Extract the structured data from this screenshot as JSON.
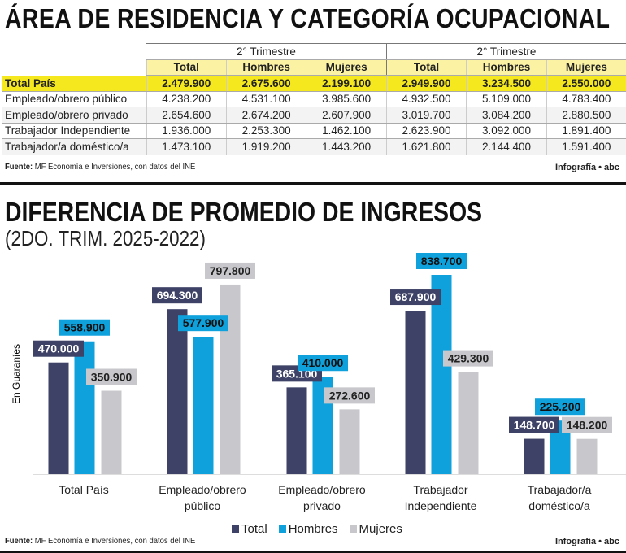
{
  "table_section": {
    "title": "ÁREA DE RESIDENCIA Y CATEGORÍA OCUPACIONAL",
    "group_headers": [
      "2° Trimestre",
      "2° Trimestre"
    ],
    "columns": [
      "Total",
      "Hombres",
      "Mujeres",
      "Total",
      "Hombres",
      "Mujeres"
    ],
    "rows": [
      {
        "label": "Total País",
        "values": [
          "2.479.900",
          "2.675.600",
          "2.199.100",
          "2.949.900",
          "3.234.500",
          "2.550.000"
        ]
      },
      {
        "label": "Empleado/obrero público",
        "values": [
          "4.238.200",
          "4.531.100",
          "3.985.600",
          "4.932.500",
          "5.109.000",
          "4.783.400"
        ]
      },
      {
        "label": "Empleado/obrero privado",
        "values": [
          "2.654.600",
          "2.674.200",
          "2.607.900",
          "3.019.700",
          "3.084.200",
          "2.880.500"
        ]
      },
      {
        "label": "Trabajador Independiente",
        "values": [
          "1.936.000",
          "2.253.300",
          "1.462.100",
          "2.623.900",
          "3.092.000",
          "1.891.400"
        ]
      },
      {
        "label": "Trabajador/a doméstico/a",
        "values": [
          "1.473.100",
          "1.919.200",
          "1.443.200",
          "1.621.800",
          "2.144.400",
          "1.591.400"
        ]
      }
    ],
    "source_label": "Fuente:",
    "source_text": "MF Economía e Inversiones, con datos del INE",
    "credit": "Infografía • abc"
  },
  "chart_section": {
    "source_label": "Fuente:",
    "source_text": "MF Economía e Inversiones, con datos del INE",
    "credit": "Infografía • abc"
  },
  "chart_data": {
    "type": "bar",
    "title": "DIFERENCIA DE PROMEDIO DE INGRESOS",
    "subtitle": "(2DO. TRIM. 2025-2022)",
    "ylabel": "En Guaraníes",
    "xlabel": "",
    "ylim": [
      0,
      840000
    ],
    "grid": false,
    "legend": "bottom",
    "categories": [
      [
        "Total País"
      ],
      [
        "Empleado/obrero",
        "público"
      ],
      [
        "Empleado/obrero",
        "privado"
      ],
      [
        "Trabajador",
        "Independiente"
      ],
      [
        "Trabajador/a",
        "doméstico/a"
      ]
    ],
    "series": [
      {
        "name": "Total",
        "color": "#3d4266",
        "values": [
          470000,
          694300,
          365100,
          687900,
          148700
        ],
        "labels": [
          "470.000",
          "694.300",
          "365.100",
          "687.900",
          "148.700"
        ]
      },
      {
        "name": "Hombres",
        "color": "#0ea1dc",
        "values": [
          558900,
          577900,
          410000,
          838700,
          225200
        ],
        "labels": [
          "558.900",
          "577.900",
          "410.000",
          "838.700",
          "225.200"
        ]
      },
      {
        "name": "Mujeres",
        "color": "#c8c8cc",
        "values": [
          350900,
          797800,
          272600,
          429300,
          148200
        ],
        "labels": [
          "350.900",
          "797.800",
          "272.600",
          "429.300",
          "148.200"
        ]
      }
    ]
  },
  "colors": {
    "highlight": "#f6e81e",
    "header": "#fbf2a4"
  }
}
